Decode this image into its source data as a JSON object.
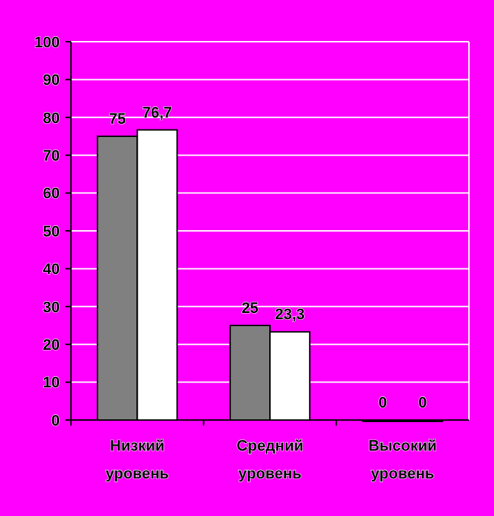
{
  "chart_data": {
    "type": "bar",
    "categories": [
      "Низкий уровень",
      "Средний уровень",
      "Высокий уровень"
    ],
    "series": [
      {
        "color": "#808080",
        "values": [
          75,
          25,
          0
        ],
        "value_labels": [
          "75",
          "25",
          "0"
        ]
      },
      {
        "color": "#ffffff",
        "values": [
          76.7,
          23.3,
          0
        ],
        "value_labels": [
          "76,7",
          "23,3",
          "0"
        ]
      }
    ],
    "ylim": [
      0,
      100
    ],
    "yticks": [
      0,
      10,
      20,
      30,
      40,
      50,
      60,
      70,
      80,
      90,
      100
    ],
    "grid": "y"
  }
}
